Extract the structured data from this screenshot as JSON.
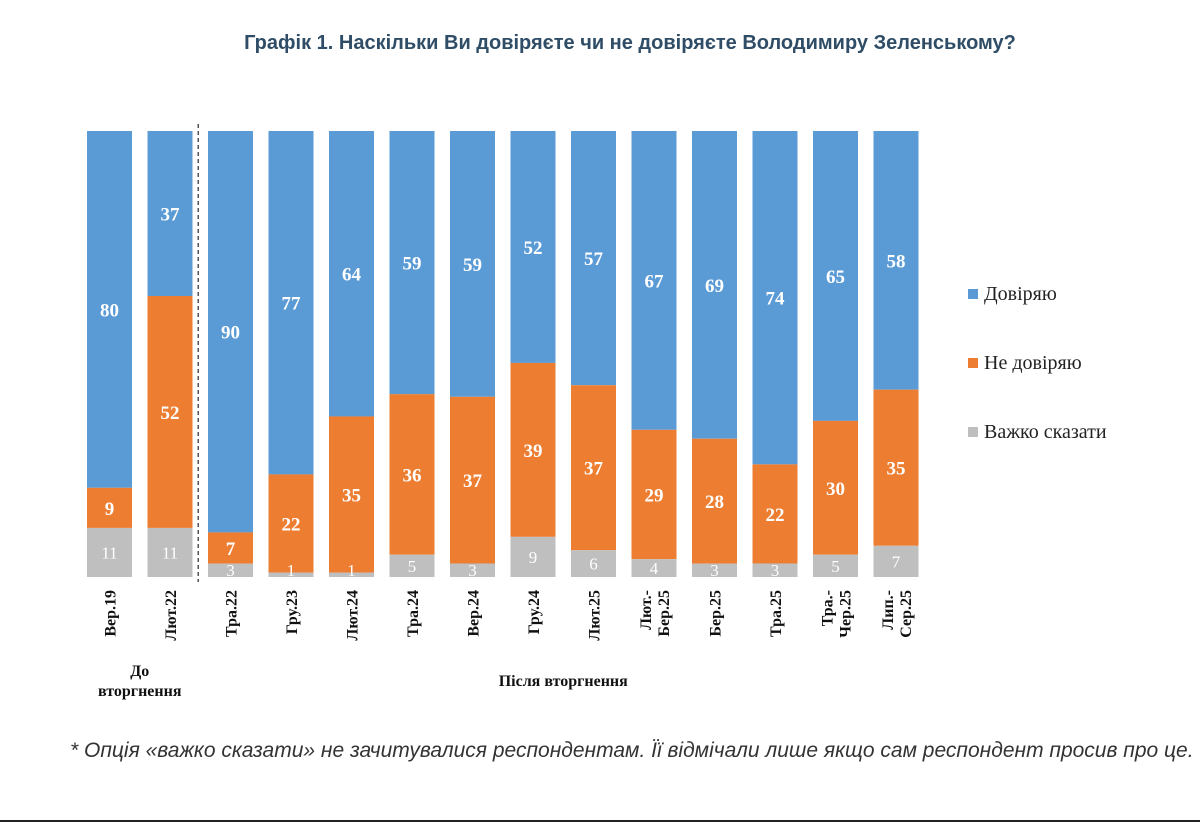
{
  "chart_data": {
    "type": "bar",
    "stacked": true,
    "normalized": true,
    "title": "Графік 1. Наскільки Ви довіряєте чи не довіряєте Володимиру Зеленському?",
    "categories": [
      "Вер.19",
      "Лют.22",
      "Тра.22",
      "Гру.23",
      "Лют.24",
      "Тра.24",
      "Вер.24",
      "Гру.24",
      "Лют.25",
      "Лют.-Бер.25",
      "Бер.25",
      "Тра.25",
      "Тра.-Чер.25",
      "Лип.-Сер.25"
    ],
    "category_lines": [
      [
        "Вер.19"
      ],
      [
        "Лют.22"
      ],
      [
        "Тра.22"
      ],
      [
        "Гру.23"
      ],
      [
        "Лют.24"
      ],
      [
        "Тра.24"
      ],
      [
        "Вер.24"
      ],
      [
        "Гру.24"
      ],
      [
        "Лют.25"
      ],
      [
        "Лют.-",
        "Бер.25"
      ],
      [
        "Бер.25"
      ],
      [
        "Тра.25"
      ],
      [
        "Тра.-",
        "Чер.25"
      ],
      [
        "Лип.-",
        "Сер.25"
      ]
    ],
    "series": [
      {
        "name": "Довіряю",
        "color": "#5b9bd5",
        "values": [
          80,
          37,
          90,
          77,
          64,
          59,
          59,
          52,
          57,
          67,
          69,
          74,
          65,
          58
        ]
      },
      {
        "name": "Не довіряю",
        "color": "#ed7d31",
        "values": [
          9,
          52,
          7,
          22,
          35,
          36,
          37,
          39,
          37,
          29,
          28,
          22,
          30,
          35
        ]
      },
      {
        "name": "Важко сказати",
        "color": "#bfbfbf",
        "values": [
          11,
          11,
          3,
          1,
          1,
          5,
          3,
          9,
          6,
          4,
          3,
          3,
          5,
          7
        ]
      }
    ],
    "groups": [
      {
        "label_lines": [
          "До",
          "вторгнення"
        ],
        "categories": [
          0,
          1
        ]
      },
      {
        "label_lines": [
          "Після вторгнення"
        ],
        "categories": [
          2,
          3,
          4,
          5,
          6,
          7,
          8,
          9,
          10,
          11,
          12,
          13
        ]
      }
    ],
    "separator_after_category": 1,
    "legend_position": "right",
    "grid": false
  },
  "footnote": "* Опція «важко сказати» не зачитувалися респондентам. Її відмічали лише якщо сам респондент просив про це."
}
